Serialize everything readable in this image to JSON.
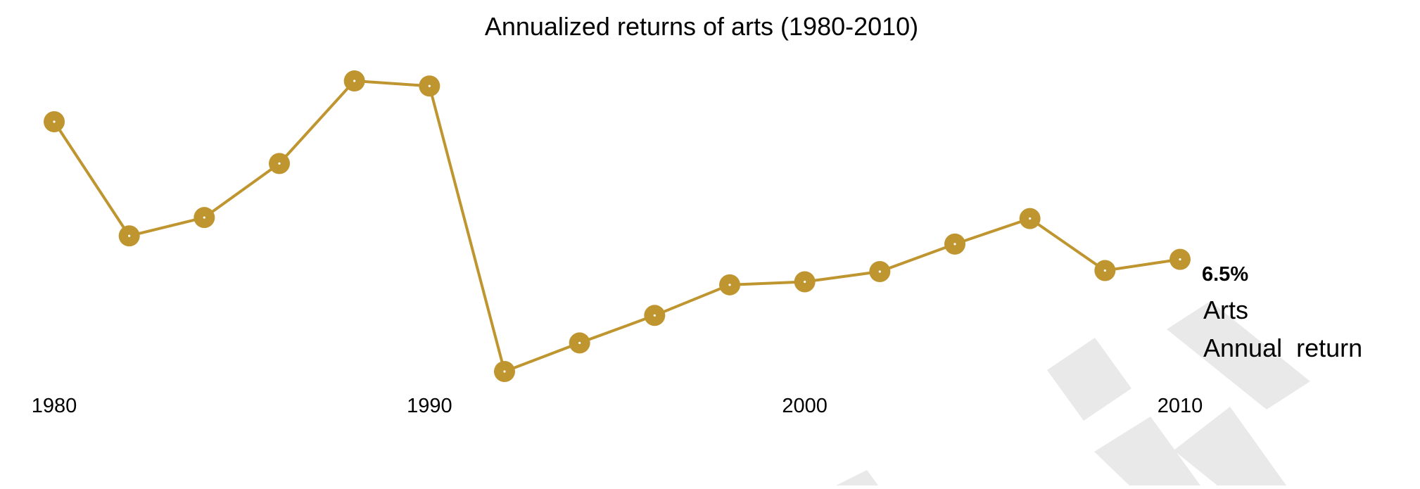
{
  "chart_data": {
    "type": "line",
    "title": "Annualized returns of arts (1980-2010)",
    "x_tick_labels": [
      "1980",
      "1990",
      "2000",
      "2010"
    ],
    "x": [
      1980,
      1982,
      1984,
      1986,
      1988,
      1990,
      1992,
      1994,
      1996,
      1998,
      2000,
      2002,
      2004,
      2006,
      2008,
      2010
    ],
    "series": [
      {
        "name": "Arts",
        "values": [
          20.0,
          8.8,
          10.6,
          15.9,
          24.0,
          23.5,
          -4.5,
          -1.7,
          1.0,
          4.0,
          4.3,
          5.3,
          8.0,
          10.5,
          5.4,
          6.5
        ]
      }
    ],
    "end_annotation": {
      "value_label": "6.5%",
      "series_label": "Arts",
      "sublabel": "Annual  return"
    },
    "xlim": [
      1980,
      2010
    ],
    "ylim": [
      -4.5,
      24.0
    ],
    "grid": false,
    "legend": "none",
    "colors": {
      "line": "#BF9530",
      "text": "#000000"
    }
  }
}
